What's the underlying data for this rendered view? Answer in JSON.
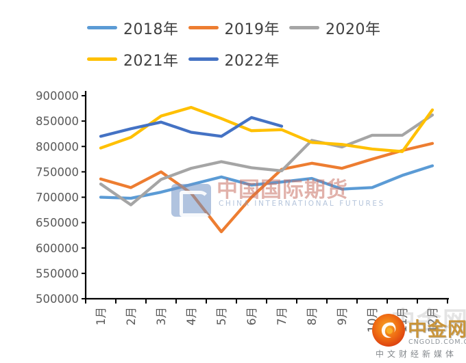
{
  "chart_data": {
    "type": "line",
    "title": "",
    "xlabel": "",
    "ylabel": "",
    "grid": false,
    "legend_position": "top",
    "ylim": [
      500000,
      900000
    ],
    "ytick_step": 50000,
    "y_tick_labels": [
      "900000",
      "850000",
      "800000",
      "750000",
      "700000",
      "650000",
      "600000",
      "550000",
      "500000"
    ],
    "categories": [
      "1月",
      "2月",
      "3月",
      "4月",
      "5月",
      "6月",
      "7月",
      "8月",
      "9月",
      "10月",
      "11月",
      "12月"
    ],
    "series": [
      {
        "name": "2018年",
        "color": "#5B9BD5",
        "values": [
          700000,
          698000,
          710000,
          725000,
          740000,
          724000,
          730000,
          737000,
          716000,
          719000,
          743000,
          762000
        ]
      },
      {
        "name": "2019年",
        "color": "#ED7D31",
        "values": [
          736000,
          719000,
          750000,
          708000,
          632000,
          700000,
          755000,
          767000,
          757000,
          775000,
          792000,
          806000
        ]
      },
      {
        "name": "2020年",
        "color": "#A5A5A5",
        "values": [
          726000,
          685000,
          735000,
          757000,
          770000,
          758000,
          752000,
          812000,
          799000,
          822000,
          822000,
          862000
        ]
      },
      {
        "name": "2021年",
        "color": "#FFC000",
        "values": [
          797000,
          818000,
          860000,
          877000,
          855000,
          831000,
          833000,
          808000,
          804000,
          795000,
          790000,
          872000
        ]
      },
      {
        "name": "2022年",
        "color": "#4472C4",
        "values": [
          820000,
          835000,
          848000,
          828000,
          820000,
          857000,
          840000
        ]
      }
    ]
  },
  "watermarks": {
    "center_cn": "中国国际期货",
    "center_en": "CHINA INTERNATIONAL FUTURES",
    "brand_name": "中金网",
    "brand_ghost": "中金网",
    "brand_url": "CNGOLD.COM.CN",
    "brand_tagline": "中文财经新媒体"
  }
}
